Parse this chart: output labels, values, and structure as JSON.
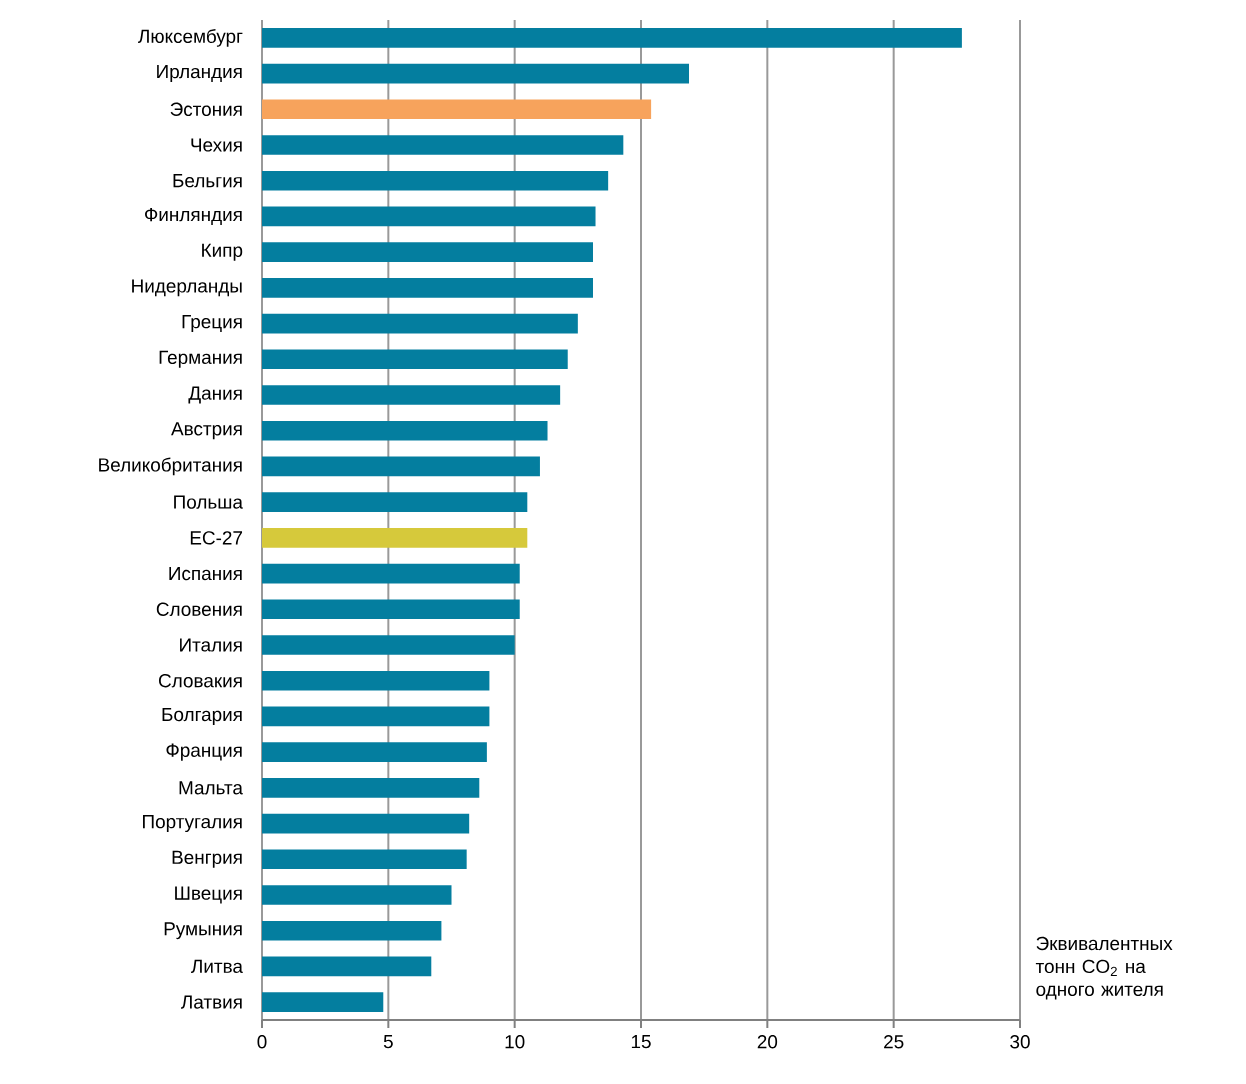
{
  "chart_data": {
    "type": "bar",
    "orientation": "horizontal",
    "xlabel": "Эквивалентных тонн CO$_{2}$ на одного жителя",
    "categories": [
      "Люксембург",
      "Ирландия",
      "Эстония",
      "Чехия",
      "Бельгия",
      "Финляндия",
      "Кипр",
      "Нидерланды",
      "Греция",
      "Германия",
      "Дания",
      "Австрия",
      "Великобритания",
      "Польша",
      "ЕС-27",
      "Испания",
      "Словения",
      "Италия",
      "Словакия",
      "Болгария",
      "Франция",
      "Мальта",
      "Португалия",
      "Венгрия",
      "Швеция",
      "Румыния",
      "Литва",
      "Латвия"
    ],
    "values": [
      27.7,
      16.9,
      15.4,
      14.3,
      13.7,
      13.2,
      13.1,
      13.1,
      12.5,
      12.1,
      11.8,
      11.3,
      11.0,
      10.5,
      10.5,
      10.2,
      10.2,
      10.0,
      9.0,
      9.0,
      8.9,
      8.6,
      8.2,
      8.1,
      7.5,
      7.1,
      6.7,
      4.8
    ],
    "colors": [
      "#047e9f",
      "#047e9f",
      "#f7a35c",
      "#047e9f",
      "#047e9f",
      "#047e9f",
      "#047e9f",
      "#047e9f",
      "#047e9f",
      "#047e9f",
      "#047e9f",
      "#047e9f",
      "#047e9f",
      "#047e9f",
      "#d6c93b",
      "#047e9f",
      "#047e9f",
      "#047e9f",
      "#047e9f",
      "#047e9f",
      "#047e9f",
      "#047e9f",
      "#047e9f",
      "#047e9f",
      "#047e9f",
      "#047e9f",
      "#047e9f",
      "#047e9f"
    ],
    "xlim": [
      0,
      30
    ],
    "xticks": [
      0,
      5,
      10,
      15,
      20,
      25,
      30
    ],
    "grid": "x"
  }
}
